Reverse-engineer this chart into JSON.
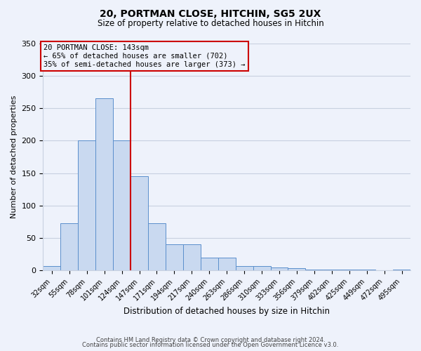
{
  "title": "20, PORTMAN CLOSE, HITCHIN, SG5 2UX",
  "subtitle": "Size of property relative to detached houses in Hitchin",
  "xlabel": "Distribution of detached houses by size in Hitchin",
  "ylabel": "Number of detached properties",
  "bar_labels": [
    "32sqm",
    "55sqm",
    "78sqm",
    "101sqm",
    "124sqm",
    "147sqm",
    "171sqm",
    "194sqm",
    "217sqm",
    "240sqm",
    "263sqm",
    "286sqm",
    "310sqm",
    "333sqm",
    "356sqm",
    "379sqm",
    "402sqm",
    "425sqm",
    "449sqm",
    "472sqm",
    "495sqm"
  ],
  "bar_values": [
    7,
    73,
    200,
    265,
    200,
    145,
    73,
    40,
    40,
    20,
    20,
    7,
    7,
    5,
    4,
    2,
    1,
    1,
    1,
    0,
    2
  ],
  "bar_color": "#c9d9f0",
  "bar_edge_color": "#5b8fcc",
  "vline_bar_index": 5,
  "vline_color": "#cc0000",
  "annotation_title": "20 PORTMAN CLOSE: 143sqm",
  "annotation_line1": "← 65% of detached houses are smaller (702)",
  "annotation_line2": "35% of semi-detached houses are larger (373) →",
  "annotation_box_color": "#cc0000",
  "ylim": [
    0,
    350
  ],
  "yticks": [
    0,
    50,
    100,
    150,
    200,
    250,
    300,
    350
  ],
  "footer1": "Contains HM Land Registry data © Crown copyright and database right 2024.",
  "footer2": "Contains public sector information licensed under the Open Government Licence v3.0.",
  "background_color": "#eef2fb",
  "grid_color": "#c8d0e0"
}
